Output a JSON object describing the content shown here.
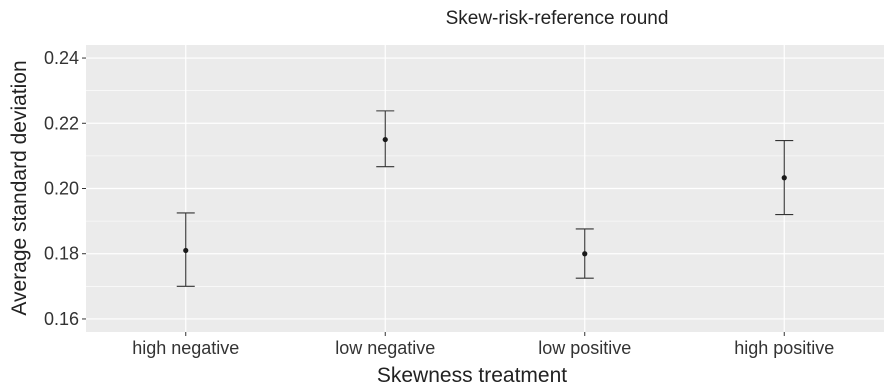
{
  "chart_data": {
    "type": "scatter",
    "title": "Skew-risk-reference round",
    "xlabel": "Skewness treatment",
    "ylabel": "Average standard deviation",
    "categories": [
      "high negative",
      "low negative",
      "low positive",
      "high positive"
    ],
    "series": [
      {
        "values": [
          0.181,
          0.215,
          0.18,
          0.2033
        ],
        "error_low": [
          0.17,
          0.2067,
          0.1725,
          0.192
        ],
        "error_high": [
          0.1925,
          0.2238,
          0.1876,
          0.2147
        ]
      }
    ],
    "yticks": [
      "0.16",
      "0.18",
      "0.20",
      "0.22",
      "0.24"
    ],
    "ylim": [
      0.156,
      0.244
    ],
    "grid": true,
    "background": "#ebebeb",
    "grid_color": "#ffffff",
    "point_color": "#1a1a1a",
    "errorbar_color": "#333333"
  }
}
